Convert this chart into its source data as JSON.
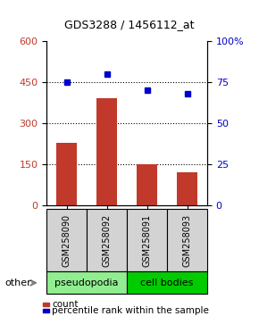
{
  "title": "GDS3288 / 1456112_at",
  "categories": [
    "GSM258090",
    "GSM258092",
    "GSM258091",
    "GSM258093"
  ],
  "bar_values": [
    230,
    390,
    150,
    120
  ],
  "bar_color": "#c0392b",
  "dot_values": [
    75,
    80,
    70,
    68
  ],
  "dot_color": "#0000cc",
  "ylim_left": [
    0,
    600
  ],
  "ylim_right": [
    0,
    100
  ],
  "yticks_left": [
    0,
    150,
    300,
    450,
    600
  ],
  "yticks_right": [
    0,
    25,
    50,
    75,
    100
  ],
  "ytick_labels_left": [
    "0",
    "150",
    "300",
    "450",
    "600"
  ],
  "ytick_labels_right": [
    "0",
    "25",
    "50",
    "75",
    "100%"
  ],
  "hlines": [
    150,
    300,
    450
  ],
  "groups": [
    {
      "label": "pseudopodia",
      "color": "#90ee90",
      "samples": [
        "GSM258090",
        "GSM258092"
      ]
    },
    {
      "label": "cell bodies",
      "color": "#00cc00",
      "samples": [
        "GSM258091",
        "GSM258093"
      ]
    }
  ],
  "group_bar_bg": "#d3d3d3",
  "other_label": "other",
  "legend_count_color": "#c0392b",
  "legend_dot_color": "#0000cc",
  "legend_count_label": "count",
  "legend_dot_label": "percentile rank within the sample",
  "background_color": "#ffffff"
}
